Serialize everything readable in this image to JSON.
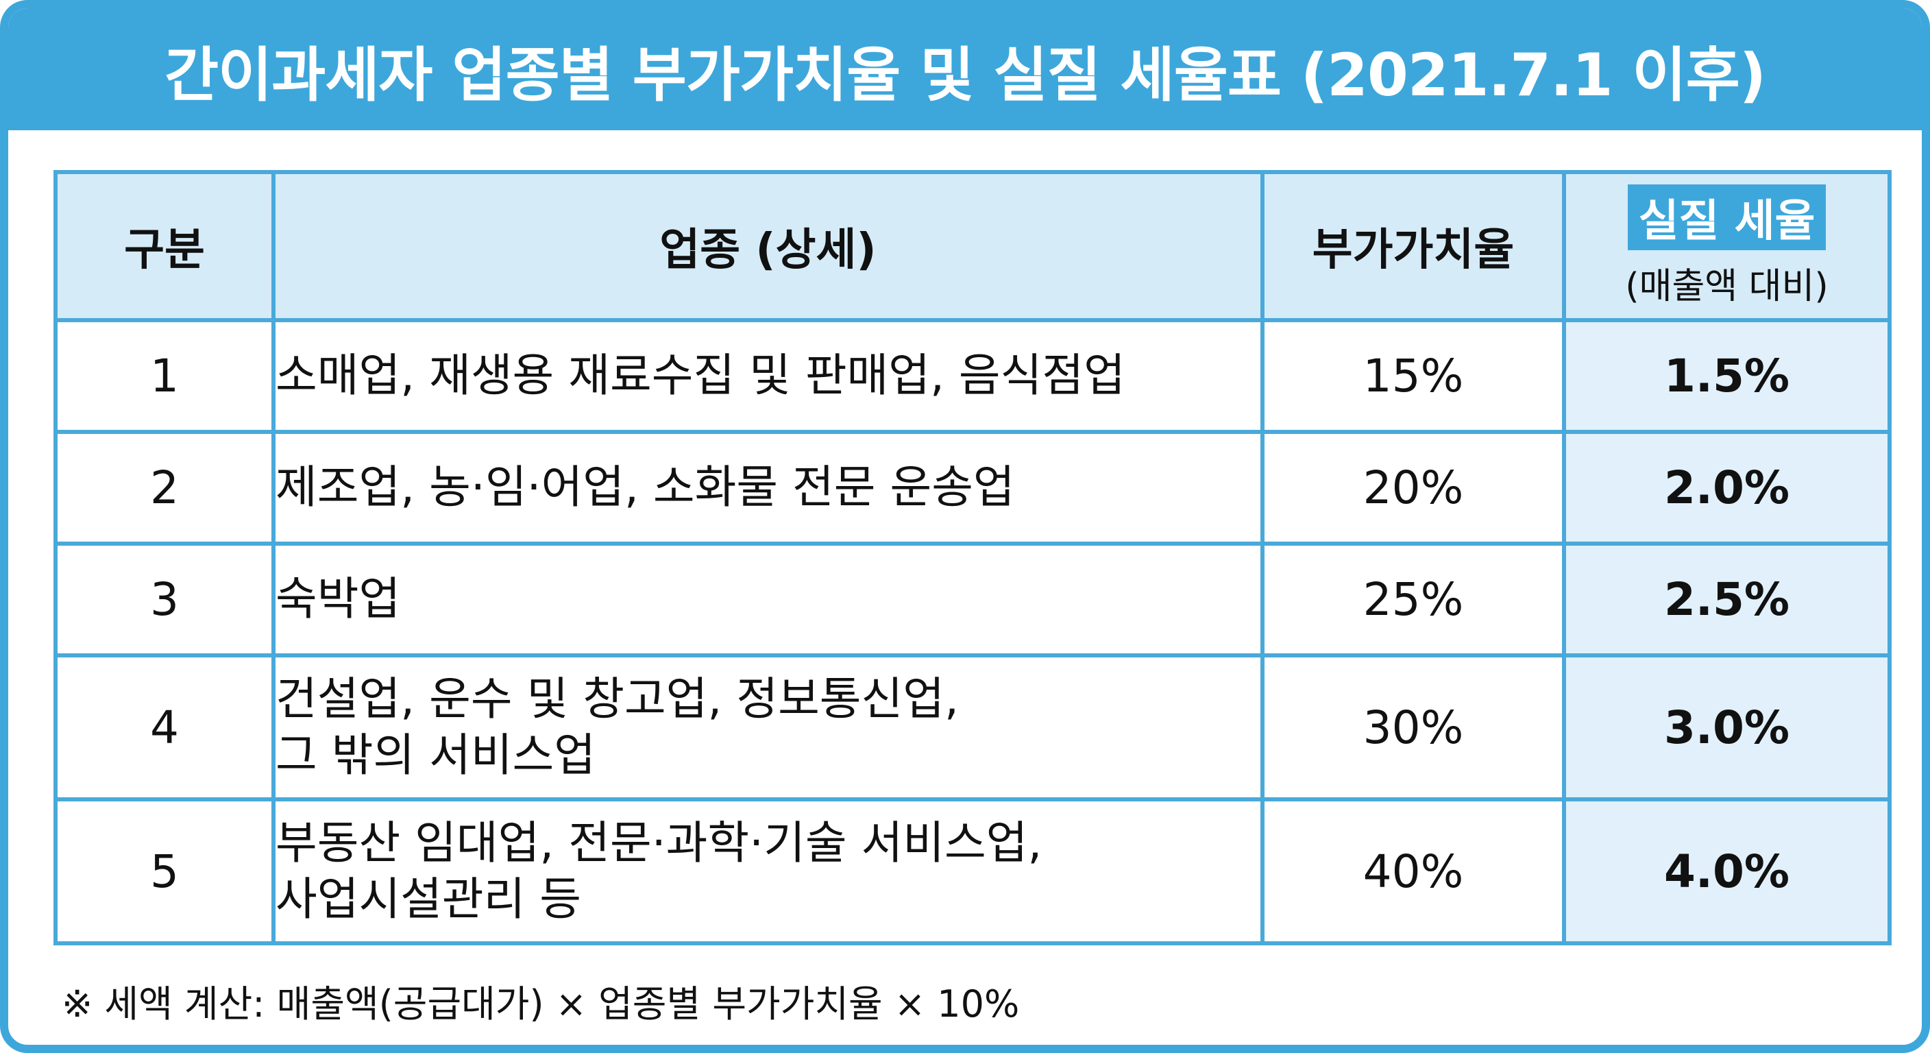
{
  "title": "간이과세자 업종별 부가가치율 및 실질 세율표 (2021.7.1 이후)",
  "table": {
    "headers": {
      "category": "구분",
      "industry": "업종 (상세)",
      "value_added_rate": "부가가치율",
      "effective_rate": "실질 세율",
      "effective_rate_sub": "(매출액 대비)"
    },
    "rows": [
      {
        "no": "1",
        "industry": "소매업, 재생용 재료수집 및 판매업, 음식점업",
        "rate": "15%",
        "effective": "1.5%"
      },
      {
        "no": "2",
        "industry": "제조업, 농·임·어업, 소화물 전문 운송업",
        "rate": "20%",
        "effective": "2.0%"
      },
      {
        "no": "3",
        "industry": "숙박업",
        "rate": "25%",
        "effective": "2.5%"
      },
      {
        "no": "4",
        "industry": "건설업, 운수 및 창고업, 정보통신업,\n그 밖의 서비스업",
        "rate": "30%",
        "effective": "3.0%"
      },
      {
        "no": "5",
        "industry": "부동산 임대업, 전문·과학·기술 서비스업,\n사업시설관리 등",
        "rate": "40%",
        "effective": "4.0%"
      }
    ]
  },
  "note": "※ 세액 계산: 매출액(공급대가) × 업종별 부가가치율 × 10%",
  "colors": {
    "accent": "#3da7db",
    "header_bg": "#d6ebf8",
    "highlight_col_bg": "#e1f0fa",
    "border": "#4aa9da"
  }
}
